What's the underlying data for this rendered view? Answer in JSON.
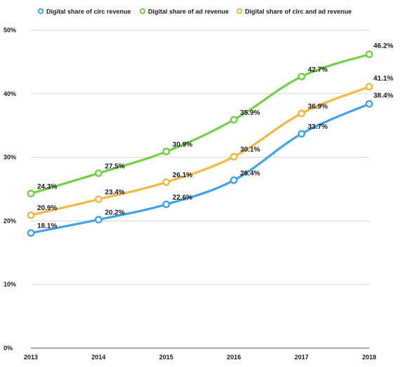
{
  "chart_data": {
    "type": "line",
    "x": [
      "2013",
      "2014",
      "2015",
      "2016",
      "2017",
      "2018"
    ],
    "series": [
      {
        "name": "Digital share of circ revenue",
        "color": "#3ea3ee",
        "values": [
          18.1,
          20.2,
          22.6,
          26.4,
          33.7,
          38.4
        ],
        "labels": [
          "18.1%",
          "20.2%",
          "22.6%",
          "26.4%",
          "33.7%",
          "38.4%"
        ]
      },
      {
        "name": "Digital share of ad revenue",
        "color": "#6fd33f",
        "values": [
          24.3,
          27.5,
          30.9,
          35.9,
          42.7,
          46.2
        ],
        "labels": [
          "24.3%",
          "27.5%",
          "30.9%",
          "35.9%",
          "42.7%",
          "46.2%"
        ]
      },
      {
        "name": "Digital share of circ and ad revenue",
        "color": "#f5b83a",
        "values": [
          20.9,
          23.4,
          26.1,
          30.1,
          36.9,
          41.1
        ],
        "labels": [
          "20.9%",
          "23.4%",
          "26.1%",
          "30.1%",
          "36.9%",
          "41.1%"
        ]
      }
    ],
    "ylim": [
      0,
      50
    ],
    "yticks": [
      0,
      10,
      20,
      30,
      40,
      50
    ],
    "ytick_labels": [
      "0%",
      "10%",
      "20%",
      "30%",
      "40%",
      "50%"
    ],
    "grid": true,
    "legend_position": "top"
  }
}
